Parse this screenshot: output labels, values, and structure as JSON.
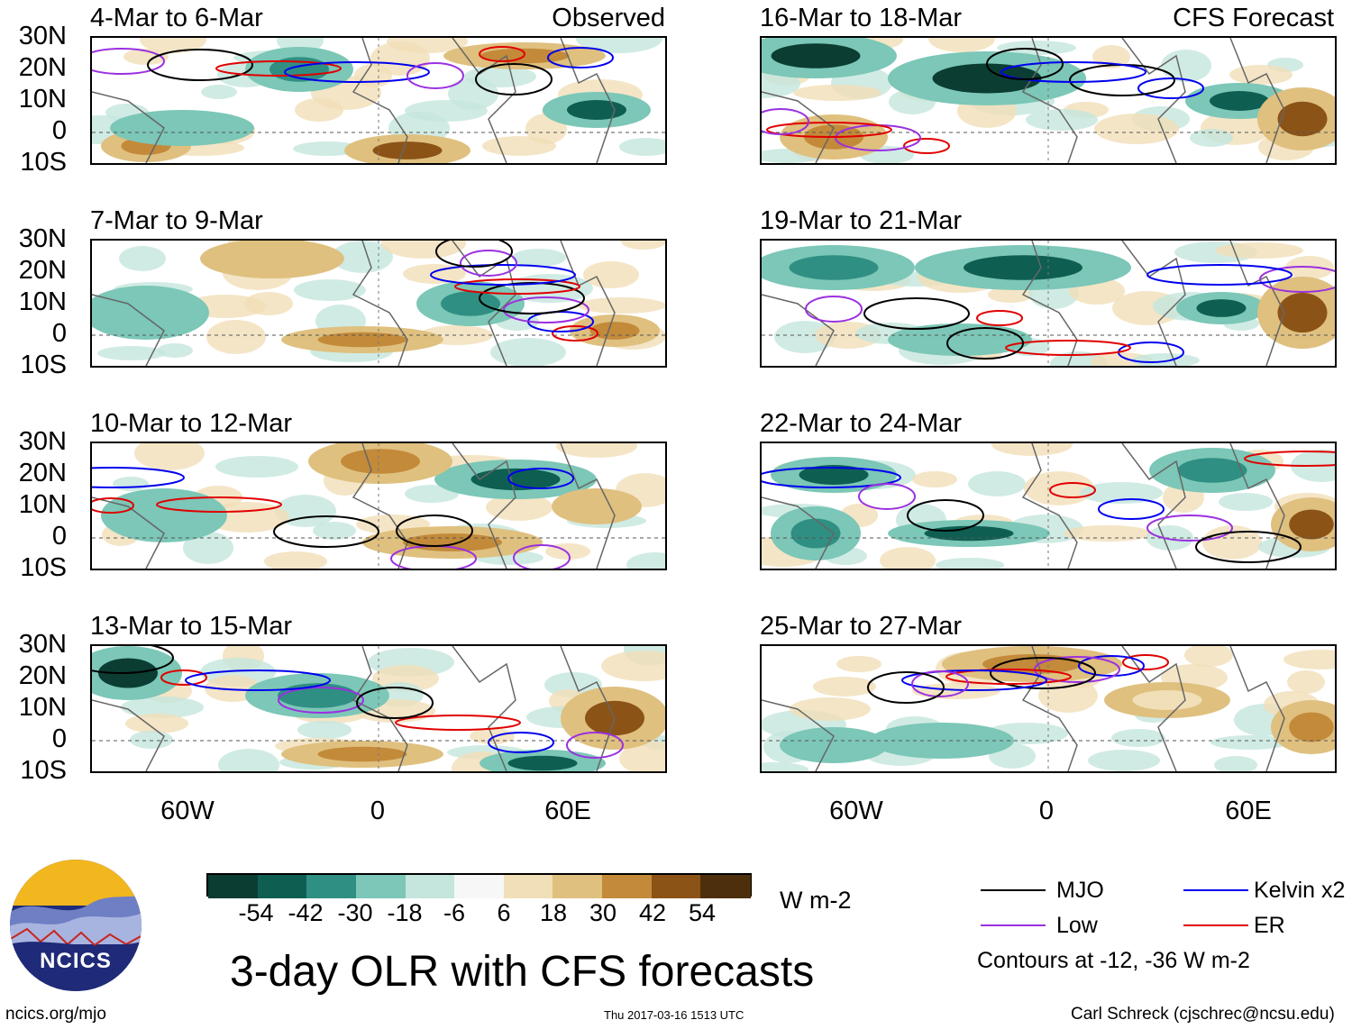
{
  "panels_observed": [
    {
      "title": "4-Mar to 6-Mar",
      "tag": "Observed"
    },
    {
      "title": "7-Mar to 9-Mar",
      "tag": ""
    },
    {
      "title": "10-Mar to 12-Mar",
      "tag": ""
    },
    {
      "title": "13-Mar to 15-Mar",
      "tag": ""
    }
  ],
  "panels_forecast": [
    {
      "title": "16-Mar to 18-Mar",
      "tag": "CFS Forecast"
    },
    {
      "title": "19-Mar to 21-Mar",
      "tag": ""
    },
    {
      "title": "22-Mar to 24-Mar",
      "tag": ""
    },
    {
      "title": "25-Mar to 27-Mar",
      "tag": ""
    }
  ],
  "lat_labels": [
    "30N",
    "20N",
    "10N",
    "0",
    "10S"
  ],
  "lon_labels": [
    "60W",
    "0",
    "60E"
  ],
  "colorbar": {
    "colors": [
      "#0b3d33",
      "#0e5f52",
      "#2f8f82",
      "#7cc7b7",
      "#c4e6dd",
      "#f7f7f7",
      "#f1dfb8",
      "#dfc07f",
      "#c38a3a",
      "#8c5317",
      "#4e2f0b"
    ],
    "labels": [
      "-54",
      "-42",
      "-30",
      "-18",
      "-6",
      "6",
      "18",
      "30",
      "42",
      "54"
    ],
    "units": "W m-2"
  },
  "legend": {
    "items": [
      {
        "label": "MJO",
        "color": "#000000"
      },
      {
        "label": "Kelvin x2",
        "color": "#0000ee"
      },
      {
        "label": "Low",
        "color": "#9b30e0"
      },
      {
        "label": "ER",
        "color": "#e00000"
      }
    ],
    "note": "Contours at -12, -36 W m-2"
  },
  "logo": {
    "text": "NCICS"
  },
  "title": "3-day OLR with CFS forecasts",
  "footer": {
    "left": "ncics.org/mjo",
    "center": "Thu 2017-03-16 1513 UTC",
    "right": "Carl Schreck (cjschrec@ncsu.edu)"
  }
}
